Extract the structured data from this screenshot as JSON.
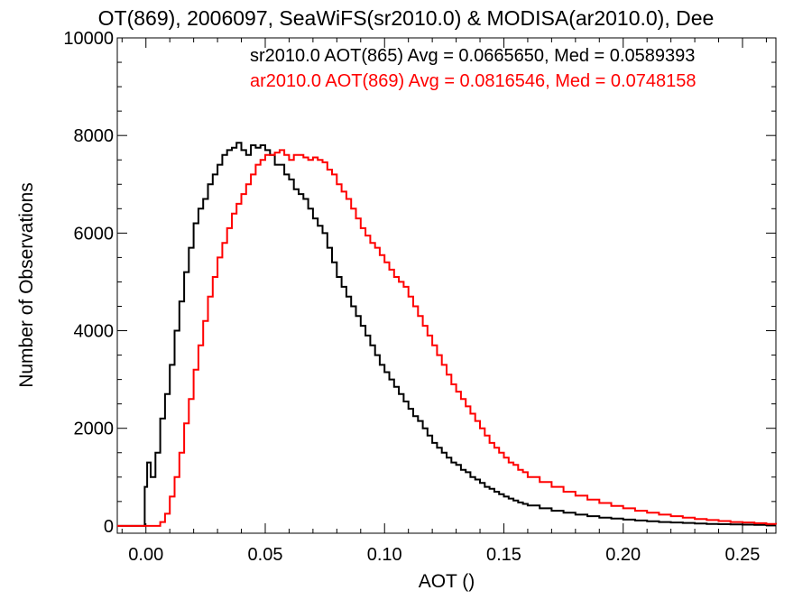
{
  "chart_data": {
    "type": "line",
    "title": "OT(869), 2006097, SeaWiFS(sr2010.0) & MODISA(ar2010.0), Dee",
    "xlabel": "AOT ()",
    "ylabel": "Number of Observations",
    "xlim": [
      -0.012,
      0.264
    ],
    "ylim": [
      -150,
      10000
    ],
    "x_ticks": [
      "0.00",
      "0.05",
      "0.10",
      "0.15",
      "0.20",
      "0.25"
    ],
    "x_tick_values": [
      0.0,
      0.05,
      0.1,
      0.15,
      0.2,
      0.25
    ],
    "y_ticks": [
      "0",
      "2000",
      "4000",
      "6000",
      "8000",
      "10000"
    ],
    "y_tick_values": [
      0,
      2000,
      4000,
      6000,
      8000,
      10000
    ],
    "grid": false,
    "legend_position": "top-right",
    "series": [
      {
        "name": "sr2010.0 AOT(865) Avg = 0.0665650, Med = 0.0589393",
        "color": "#000000",
        "style": "step",
        "x": [
          -0.012,
          -0.002,
          -0.0005,
          0.0005,
          0.002,
          0.004,
          0.006,
          0.008,
          0.01,
          0.012,
          0.014,
          0.016,
          0.018,
          0.02,
          0.022,
          0.024,
          0.026,
          0.028,
          0.03,
          0.032,
          0.034,
          0.036,
          0.038,
          0.04,
          0.042,
          0.044,
          0.046,
          0.048,
          0.05,
          0.052,
          0.054,
          0.056,
          0.058,
          0.06,
          0.062,
          0.064,
          0.066,
          0.068,
          0.07,
          0.072,
          0.074,
          0.076,
          0.078,
          0.08,
          0.082,
          0.084,
          0.086,
          0.088,
          0.09,
          0.092,
          0.094,
          0.096,
          0.098,
          0.1,
          0.102,
          0.104,
          0.106,
          0.108,
          0.11,
          0.112,
          0.114,
          0.116,
          0.118,
          0.12,
          0.122,
          0.124,
          0.126,
          0.128,
          0.13,
          0.132,
          0.134,
          0.136,
          0.138,
          0.14,
          0.142,
          0.144,
          0.146,
          0.148,
          0.15,
          0.152,
          0.154,
          0.156,
          0.158,
          0.16,
          0.165,
          0.17,
          0.175,
          0.18,
          0.185,
          0.19,
          0.195,
          0.2,
          0.205,
          0.21,
          0.215,
          0.22,
          0.225,
          0.23,
          0.235,
          0.24,
          0.245,
          0.25,
          0.255,
          0.26,
          0.264
        ],
        "y": [
          0,
          0,
          800,
          1300,
          1000,
          1500,
          2200,
          2700,
          3300,
          4000,
          4600,
          5200,
          5700,
          6200,
          6500,
          6700,
          7000,
          7200,
          7400,
          7600,
          7700,
          7750,
          7850,
          7700,
          7600,
          7800,
          7750,
          7800,
          7700,
          7600,
          7400,
          7400,
          7200,
          7100,
          6900,
          6800,
          6700,
          6500,
          6300,
          6150,
          6000,
          5700,
          5400,
          5100,
          4900,
          4700,
          4500,
          4300,
          4100,
          3900,
          3700,
          3500,
          3300,
          3150,
          3000,
          2850,
          2700,
          2550,
          2400,
          2250,
          2150,
          2000,
          1850,
          1700,
          1600,
          1500,
          1400,
          1300,
          1250,
          1150,
          1100,
          1000,
          950,
          880,
          800,
          760,
          700,
          650,
          600,
          560,
          520,
          480,
          450,
          420,
          360,
          310,
          270,
          230,
          200,
          170,
          150,
          130,
          110,
          95,
          80,
          70,
          60,
          50,
          40,
          35,
          30,
          25,
          20,
          15,
          15
        ]
      },
      {
        "name": "ar2010.0 AOT(869) Avg = 0.0816546, Med = 0.0748158",
        "color": "#ff0000",
        "style": "step",
        "x": [
          -0.012,
          0.004,
          0.006,
          0.008,
          0.01,
          0.012,
          0.014,
          0.016,
          0.018,
          0.02,
          0.022,
          0.024,
          0.026,
          0.028,
          0.03,
          0.032,
          0.034,
          0.036,
          0.038,
          0.04,
          0.042,
          0.044,
          0.046,
          0.048,
          0.05,
          0.052,
          0.054,
          0.056,
          0.058,
          0.06,
          0.062,
          0.064,
          0.066,
          0.068,
          0.07,
          0.072,
          0.074,
          0.076,
          0.078,
          0.08,
          0.082,
          0.084,
          0.086,
          0.088,
          0.09,
          0.092,
          0.094,
          0.096,
          0.098,
          0.1,
          0.102,
          0.104,
          0.106,
          0.108,
          0.11,
          0.112,
          0.114,
          0.116,
          0.118,
          0.12,
          0.122,
          0.124,
          0.126,
          0.128,
          0.13,
          0.132,
          0.134,
          0.136,
          0.138,
          0.14,
          0.142,
          0.144,
          0.146,
          0.148,
          0.15,
          0.152,
          0.154,
          0.156,
          0.158,
          0.16,
          0.165,
          0.17,
          0.175,
          0.18,
          0.185,
          0.19,
          0.195,
          0.2,
          0.205,
          0.21,
          0.215,
          0.22,
          0.225,
          0.23,
          0.235,
          0.24,
          0.245,
          0.25,
          0.255,
          0.26,
          0.264
        ],
        "y": [
          0,
          0,
          80,
          250,
          600,
          1000,
          1500,
          2100,
          2600,
          3200,
          3700,
          4200,
          4700,
          5100,
          5500,
          5800,
          6100,
          6400,
          6600,
          6800,
          7000,
          7200,
          7400,
          7500,
          7600,
          7600,
          7650,
          7700,
          7600,
          7500,
          7600,
          7600,
          7550,
          7500,
          7550,
          7500,
          7450,
          7300,
          7200,
          7000,
          6850,
          6700,
          6500,
          6300,
          6100,
          5950,
          5800,
          5700,
          5550,
          5400,
          5250,
          5100,
          5000,
          4900,
          4700,
          4500,
          4300,
          4100,
          3900,
          3700,
          3500,
          3300,
          3100,
          2900,
          2750,
          2600,
          2450,
          2300,
          2150,
          2000,
          1850,
          1700,
          1600,
          1500,
          1400,
          1300,
          1250,
          1150,
          1100,
          1000,
          900,
          800,
          700,
          620,
          540,
          470,
          410,
          360,
          310,
          270,
          230,
          200,
          170,
          140,
          120,
          100,
          80,
          70,
          55,
          40,
          30
        ]
      }
    ]
  }
}
